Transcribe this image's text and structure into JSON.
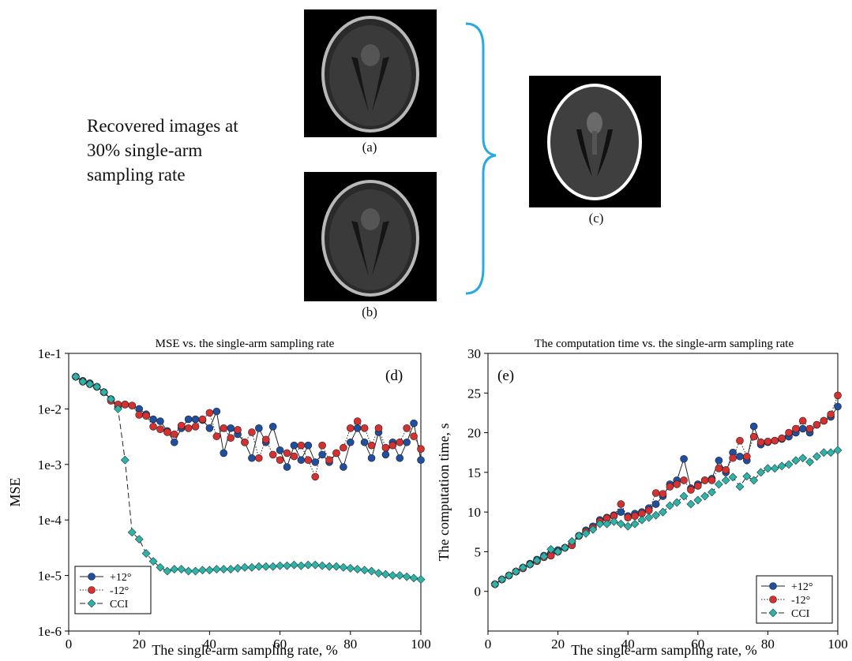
{
  "figure": {
    "caption_lines": [
      "Recovered images at",
      "30% single-arm",
      "sampling rate"
    ],
    "image_labels": {
      "a": "(a)",
      "b": "(b)",
      "c": "(c)"
    },
    "brace_color": "#29a9e0"
  },
  "chart_data": [
    {
      "id": "d",
      "type": "line",
      "panel_label": "(d)",
      "title": "MSE vs. the single-arm sampling rate",
      "xlabel": "The single-arm sampling rate, %",
      "ylabel": "MSE",
      "yscale": "log",
      "xlim": [
        0,
        100
      ],
      "ylim": [
        1e-06,
        0.1
      ],
      "xticks": [
        0,
        20,
        40,
        60,
        80,
        100
      ],
      "xtick_labels": [
        "0",
        "20",
        "40",
        "60",
        "80",
        "100"
      ],
      "yticks": [
        1e-06,
        1e-05,
        0.0001,
        0.001,
        0.01,
        0.1
      ],
      "ytick_labels": [
        "1e-6",
        "1e-5",
        "1e-4",
        "1e-3",
        "1e-2",
        "1e-1"
      ],
      "grid": false,
      "legend_position": "bottom-left",
      "series": [
        {
          "name": "+12°",
          "color": "#1f4fa0",
          "marker": "circle",
          "line": "solid",
          "x": [
            2,
            4,
            6,
            8,
            10,
            12,
            14,
            16,
            18,
            20,
            22,
            24,
            26,
            28,
            30,
            32,
            34,
            36,
            38,
            40,
            42,
            44,
            46,
            48,
            50,
            52,
            54,
            56,
            58,
            60,
            62,
            64,
            66,
            68,
            70,
            72,
            74,
            76,
            78,
            80,
            82,
            84,
            86,
            88,
            90,
            92,
            94,
            96,
            98,
            100
          ],
          "y": [
            0.038,
            0.032,
            0.029,
            0.025,
            0.02,
            0.015,
            0.011,
            0.012,
            0.0115,
            0.01,
            0.008,
            0.0065,
            0.006,
            0.004,
            0.0025,
            0.0045,
            0.0065,
            0.0065,
            0.0063,
            0.0045,
            0.009,
            0.0016,
            0.0045,
            0.0035,
            0.0025,
            0.0013,
            0.0045,
            0.0025,
            0.0048,
            0.0018,
            0.0009,
            0.0022,
            0.0012,
            0.0022,
            0.0011,
            0.0015,
            0.0011,
            0.0016,
            0.0009,
            0.0025,
            0.0045,
            0.0025,
            0.0013,
            0.0038,
            0.0015,
            0.0025,
            0.0013,
            0.0025,
            0.0055,
            0.0012
          ]
        },
        {
          "name": "-12°",
          "color": "#d63030",
          "marker": "circle",
          "line": "dotted",
          "x": [
            2,
            4,
            6,
            8,
            10,
            12,
            14,
            16,
            18,
            20,
            22,
            24,
            26,
            28,
            30,
            32,
            34,
            36,
            38,
            40,
            42,
            44,
            46,
            48,
            50,
            52,
            54,
            56,
            58,
            60,
            62,
            64,
            66,
            68,
            70,
            72,
            74,
            76,
            78,
            80,
            82,
            84,
            86,
            88,
            90,
            92,
            94,
            96,
            98,
            100
          ],
          "y": [
            0.038,
            0.031,
            0.028,
            0.025,
            0.02,
            0.014,
            0.012,
            0.012,
            0.0115,
            0.0078,
            0.0075,
            0.0048,
            0.0043,
            0.0038,
            0.0035,
            0.005,
            0.0045,
            0.0048,
            0.0065,
            0.0085,
            0.0032,
            0.0045,
            0.003,
            0.0042,
            0.0025,
            0.0038,
            0.0013,
            0.0028,
            0.0015,
            0.0012,
            0.0016,
            0.0014,
            0.0022,
            0.0012,
            0.0006,
            0.0022,
            0.0012,
            0.0016,
            0.002,
            0.0045,
            0.006,
            0.0045,
            0.0022,
            0.0045,
            0.002,
            0.0022,
            0.0025,
            0.0045,
            0.0032,
            0.0019
          ]
        },
        {
          "name": "CCI",
          "color": "#2eb3a8",
          "marker": "diamond",
          "line": "dashed",
          "x": [
            2,
            4,
            6,
            8,
            10,
            12,
            14,
            16,
            18,
            20,
            22,
            24,
            26,
            28,
            30,
            32,
            34,
            36,
            38,
            40,
            42,
            44,
            46,
            48,
            50,
            52,
            54,
            56,
            58,
            60,
            62,
            64,
            66,
            68,
            70,
            72,
            74,
            76,
            78,
            80,
            82,
            84,
            86,
            88,
            90,
            92,
            94,
            96,
            98,
            100
          ],
          "y": [
            0.038,
            0.031,
            0.028,
            0.025,
            0.02,
            0.015,
            0.01,
            0.0012,
            6e-05,
            4.5e-05,
            2.5e-05,
            1.8e-05,
            1.4e-05,
            1.2e-05,
            1.3e-05,
            1.3e-05,
            1.2e-05,
            1.2e-05,
            1.25e-05,
            1.25e-05,
            1.3e-05,
            1.3e-05,
            1.3e-05,
            1.35e-05,
            1.4e-05,
            1.4e-05,
            1.45e-05,
            1.45e-05,
            1.45e-05,
            1.5e-05,
            1.5e-05,
            1.55e-05,
            1.5e-05,
            1.55e-05,
            1.55e-05,
            1.5e-05,
            1.45e-05,
            1.45e-05,
            1.4e-05,
            1.35e-05,
            1.3e-05,
            1.25e-05,
            1.2e-05,
            1.1e-05,
            1.05e-05,
            1e-05,
            1e-05,
            9.5e-06,
            9e-06,
            8.5e-06
          ]
        }
      ]
    },
    {
      "id": "e",
      "type": "line",
      "panel_label": "(e)",
      "title": "The computation time vs. the single-arm sampling rate",
      "xlabel": "The single-arm sampling rate, %",
      "ylabel": "The computation time, s",
      "yscale": "linear",
      "xlim": [
        0,
        100
      ],
      "ylim": [
        -5,
        30
      ],
      "xticks": [
        0,
        20,
        40,
        60,
        80,
        100
      ],
      "xtick_labels": [
        "0",
        "20",
        "40",
        "60",
        "80",
        "100"
      ],
      "yticks": [
        0,
        5,
        10,
        15,
        20,
        25,
        30
      ],
      "ytick_labels": [
        "0",
        "5",
        "10",
        "15",
        "20",
        "25",
        "30"
      ],
      "grid": false,
      "legend_position": "bottom-right",
      "series": [
        {
          "name": "+12°",
          "color": "#1f4fa0",
          "marker": "circle",
          "line": "solid",
          "x": [
            2,
            4,
            6,
            8,
            10,
            12,
            14,
            16,
            18,
            20,
            22,
            24,
            26,
            28,
            30,
            32,
            34,
            36,
            38,
            40,
            42,
            44,
            46,
            48,
            50,
            52,
            54,
            56,
            58,
            60,
            62,
            64,
            66,
            68,
            70,
            72,
            74,
            76,
            78,
            80,
            82,
            84,
            86,
            88,
            90,
            92,
            94,
            96,
            98,
            100
          ],
          "y": [
            0.9,
            1.5,
            2.0,
            2.5,
            3.0,
            3.5,
            4.0,
            4.5,
            4.8,
            5.2,
            5.5,
            6.0,
            7.0,
            7.7,
            8.2,
            9.0,
            9.3,
            9.6,
            10.0,
            9.5,
            9.8,
            10.0,
            10.5,
            11.0,
            12.0,
            13.5,
            14.0,
            16.7,
            13.0,
            13.5,
            14.0,
            14.2,
            16.5,
            15.0,
            17.5,
            17.0,
            16.5,
            20.8,
            18.5,
            18.8,
            19.0,
            19.2,
            19.5,
            20.0,
            20.5,
            20.0,
            21.0,
            21.5,
            22.0,
            23.3
          ]
        },
        {
          "name": "-12°",
          "color": "#d63030",
          "marker": "circle",
          "line": "dotted",
          "x": [
            2,
            4,
            6,
            8,
            10,
            12,
            14,
            16,
            18,
            20,
            22,
            24,
            26,
            28,
            30,
            32,
            34,
            36,
            38,
            40,
            42,
            44,
            46,
            48,
            50,
            52,
            54,
            56,
            58,
            60,
            62,
            64,
            66,
            68,
            70,
            72,
            74,
            76,
            78,
            80,
            82,
            84,
            86,
            88,
            90,
            92,
            94,
            96,
            98,
            100
          ],
          "y": [
            0.9,
            1.5,
            2.0,
            2.5,
            2.9,
            3.4,
            3.8,
            4.3,
            4.5,
            5.0,
            5.5,
            5.8,
            7.0,
            7.5,
            8.0,
            8.8,
            9.2,
            9.5,
            11.0,
            9.3,
            9.5,
            9.8,
            10.2,
            12.4,
            12.3,
            13.2,
            13.5,
            14.0,
            12.8,
            13.3,
            14.0,
            14.0,
            15.5,
            15.3,
            16.8,
            19.0,
            17.0,
            19.5,
            18.8,
            18.9,
            19.0,
            19.3,
            20.0,
            20.5,
            21.5,
            20.5,
            21.0,
            21.5,
            22.3,
            24.7
          ]
        },
        {
          "name": "CCI",
          "color": "#2eb3a8",
          "marker": "diamond",
          "line": "dashed",
          "x": [
            2,
            4,
            6,
            8,
            10,
            12,
            14,
            16,
            18,
            20,
            22,
            24,
            26,
            28,
            30,
            32,
            34,
            36,
            38,
            40,
            42,
            44,
            46,
            48,
            50,
            52,
            54,
            56,
            58,
            60,
            62,
            64,
            66,
            68,
            70,
            72,
            74,
            76,
            78,
            80,
            82,
            84,
            86,
            88,
            90,
            92,
            94,
            96,
            98,
            100
          ],
          "y": [
            0.9,
            1.5,
            2.0,
            2.5,
            3.0,
            3.4,
            3.9,
            4.4,
            5.3,
            5.0,
            5.5,
            6.3,
            7.0,
            7.3,
            7.8,
            8.5,
            8.5,
            8.8,
            8.5,
            8.2,
            8.5,
            9.0,
            9.3,
            9.6,
            10.0,
            10.8,
            11.2,
            12.0,
            11.0,
            11.5,
            12.0,
            12.5,
            13.5,
            14.0,
            14.4,
            13.2,
            14.5,
            14.0,
            15.0,
            15.5,
            15.5,
            15.8,
            16.0,
            16.5,
            16.8,
            16.3,
            17.0,
            17.5,
            17.5,
            17.8
          ]
        }
      ]
    }
  ]
}
